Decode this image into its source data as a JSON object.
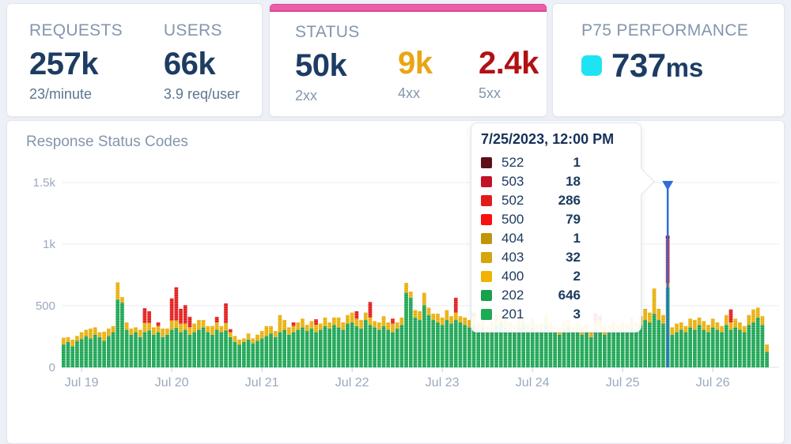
{
  "cards": {
    "requests": {
      "label": "REQUESTS",
      "value": "257k",
      "sub": "23/minute"
    },
    "users": {
      "label": "USERS",
      "value": "66k",
      "sub": "3.9 req/user"
    },
    "status": {
      "label": "STATUS",
      "s2xx": {
        "value": "50k",
        "sub": "2xx"
      },
      "s4xx": {
        "value": "9k",
        "sub": "4xx"
      },
      "s5xx": {
        "value": "2.4k",
        "sub": "5xx"
      }
    },
    "performance": {
      "label": "P75 PERFORMANCE",
      "value": "737",
      "unit": "ms"
    }
  },
  "colors": {
    "accent_pink": "#ec5da6",
    "navy": "#1d3c64",
    "orange_4xx": "#e9a513",
    "darkred_5xx": "#b11015",
    "cyan_swatch": "#1fe3f2",
    "bar_green": "#1fa656",
    "bar_gold": "#eab00e",
    "bar_red": "#e32020",
    "marker_blue": "#2f6bdb"
  },
  "chart": {
    "title": "Response Status Codes"
  },
  "chart_data": {
    "type": "bar",
    "stacked": true,
    "title": "Response Status Codes",
    "x_tick_labels": [
      "Jul 19",
      "Jul 20",
      "Jul 21",
      "Jul 22",
      "Jul 23",
      "Jul 24",
      "Jul 25",
      "Jul 26"
    ],
    "x_tick_bar_indices": [
      4,
      24,
      44,
      64,
      84,
      104,
      124,
      144
    ],
    "bars_per_day": 20,
    "y_ticks": [
      {
        "label": "0",
        "value": 0
      },
      {
        "label": "500",
        "value": 500
      },
      {
        "label": "1k",
        "value": 1000
      },
      {
        "label": "1.5k",
        "value": 1500
      }
    ],
    "ylim": [
      0,
      1570
    ],
    "selected_bar_index": 134,
    "selected_bar_total": 1068,
    "series": [
      {
        "name": "2xx",
        "color": "#1fa656",
        "values": [
          185,
          205,
          170,
          215,
          230,
          255,
          235,
          265,
          245,
          215,
          255,
          285,
          550,
          525,
          305,
          265,
          285,
          245,
          285,
          300,
          265,
          285,
          245,
          265,
          305,
          320,
          285,
          305,
          265,
          285,
          305,
          325,
          285,
          265,
          305,
          285,
          300,
          245,
          205,
          185,
          205,
          225,
          195,
          215,
          235,
          255,
          275,
          245,
          285,
          305,
          265,
          285,
          305,
          325,
          295,
          315,
          285,
          305,
          335,
          315,
          345,
          325,
          305,
          355,
          365,
          335,
          315,
          385,
          345,
          325,
          305,
          335,
          305,
          285,
          315,
          345,
          605,
          565,
          405,
          385,
          505,
          425,
          385,
          365,
          345,
          385,
          355,
          385,
          365,
          345,
          325,
          345,
          305,
          325,
          285,
          305,
          345,
          365,
          325,
          305,
          285,
          325,
          345,
          305,
          325,
          285,
          305,
          345,
          305,
          285,
          265,
          305,
          325,
          285,
          305,
          265,
          285,
          245,
          305,
          285,
          265,
          285,
          305,
          285,
          305,
          285,
          325,
          305,
          345,
          385,
          365,
          435,
          385,
          355,
          649,
          265,
          285,
          305,
          285,
          325,
          305,
          345,
          305,
          285,
          325,
          305,
          285,
          345,
          305,
          325,
          305,
          285,
          345,
          365,
          405,
          345,
          125
        ]
      },
      {
        "name": "4xx",
        "color": "#eab00e",
        "values": [
          55,
          40,
          55,
          40,
          55,
          50,
          80,
          60,
          40,
          75,
          60,
          50,
          140,
          45,
          60,
          50,
          40,
          60,
          75,
          60,
          60,
          50,
          70,
          50,
          75,
          60,
          70,
          50,
          60,
          70,
          80,
          60,
          50,
          70,
          60,
          50,
          60,
          40,
          50,
          40,
          30,
          50,
          40,
          50,
          60,
          80,
          60,
          50,
          140,
          80,
          60,
          50,
          60,
          70,
          50,
          60,
          60,
          50,
          70,
          50,
          60,
          80,
          60,
          70,
          80,
          60,
          70,
          60,
          60,
          50,
          60,
          80,
          60,
          70,
          50,
          60,
          80,
          50,
          60,
          70,
          100,
          60,
          50,
          70,
          60,
          80,
          60,
          60,
          50,
          60,
          60,
          70,
          50,
          60,
          50,
          70,
          80,
          60,
          70,
          60,
          60,
          80,
          60,
          50,
          70,
          60,
          50,
          80,
          60,
          50,
          60,
          70,
          60,
          50,
          60,
          70,
          60,
          50,
          75,
          90,
          70,
          60,
          70,
          60,
          60,
          70,
          80,
          60,
          70,
          90,
          80,
          205,
          90,
          70,
          35,
          60,
          70,
          60,
          50,
          70,
          80,
          60,
          70,
          60,
          70,
          60,
          50,
          80,
          60,
          70,
          60,
          50,
          80,
          105,
          80,
          70,
          60
        ]
      },
      {
        "name": "5xx",
        "color": "#e32020",
        "values": [
          0,
          0,
          0,
          0,
          0,
          0,
          0,
          0,
          0,
          0,
          0,
          0,
          0,
          0,
          0,
          0,
          0,
          0,
          120,
          95,
          0,
          30,
          0,
          0,
          180,
          270,
          120,
          150,
          85,
          0,
          0,
          0,
          0,
          0,
          45,
          0,
          160,
          25,
          0,
          0,
          0,
          0,
          0,
          0,
          0,
          0,
          0,
          0,
          0,
          0,
          0,
          30,
          0,
          0,
          0,
          0,
          45,
          0,
          0,
          0,
          0,
          0,
          0,
          0,
          0,
          60,
          0,
          0,
          125,
          0,
          0,
          0,
          0,
          40,
          0,
          0,
          0,
          0,
          0,
          0,
          0,
          0,
          0,
          0,
          0,
          0,
          0,
          120,
          0,
          0,
          0,
          30,
          0,
          0,
          0,
          0,
          0,
          0,
          0,
          0,
          0,
          0,
          0,
          0,
          0,
          0,
          0,
          0,
          0,
          0,
          0,
          0,
          0,
          0,
          0,
          0,
          0,
          0,
          60,
          45,
          0,
          0,
          0,
          0,
          0,
          0,
          0,
          0,
          0,
          0,
          0,
          0,
          0,
          0,
          384,
          0,
          0,
          0,
          0,
          0,
          0,
          0,
          0,
          0,
          0,
          0,
          0,
          0,
          105,
          0,
          0,
          0,
          0,
          0,
          0,
          0,
          0
        ]
      }
    ]
  },
  "tooltip": {
    "title": "7/25/2023, 12:00 PM",
    "rows": [
      {
        "code": "522",
        "count": "1",
        "color": "#5e0e17"
      },
      {
        "code": "503",
        "count": "18",
        "color": "#c11226"
      },
      {
        "code": "502",
        "count": "286",
        "color": "#e31a1a"
      },
      {
        "code": "500",
        "count": "79",
        "color": "#fb0f0f"
      },
      {
        "code": "404",
        "count": "1",
        "color": "#c2940a"
      },
      {
        "code": "403",
        "count": "32",
        "color": "#d6a50e"
      },
      {
        "code": "400",
        "count": "2",
        "color": "#f0b400"
      },
      {
        "code": "202",
        "count": "646",
        "color": "#17a04d"
      },
      {
        "code": "201",
        "count": "3",
        "color": "#1cab55"
      }
    ]
  }
}
